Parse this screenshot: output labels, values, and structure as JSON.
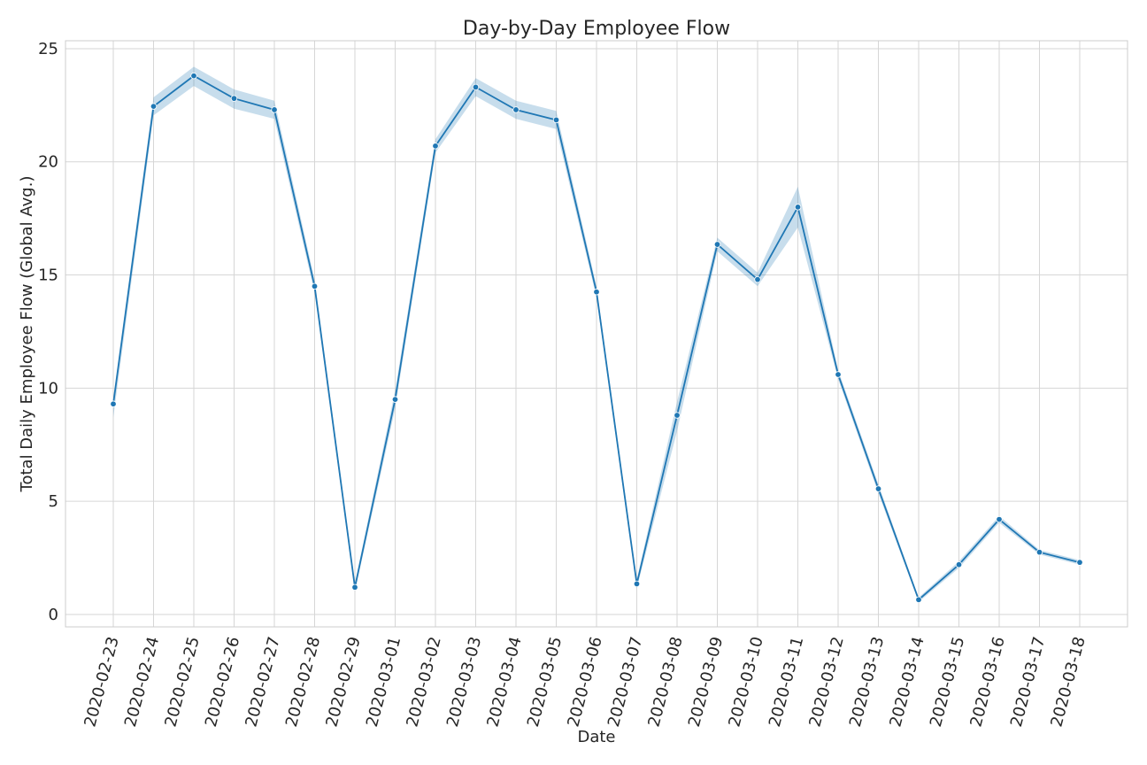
{
  "chart_data": {
    "type": "line",
    "title": "Day-by-Day Employee Flow",
    "xlabel": "Date",
    "ylabel": "Total Daily Employee Flow (Global Avg.)",
    "x": [
      "2020-02-23",
      "2020-02-24",
      "2020-02-25",
      "2020-02-26",
      "2020-02-27",
      "2020-02-28",
      "2020-02-29",
      "2020-03-01",
      "2020-03-02",
      "2020-03-03",
      "2020-03-04",
      "2020-03-05",
      "2020-03-06",
      "2020-03-07",
      "2020-03-08",
      "2020-03-09",
      "2020-03-10",
      "2020-03-11",
      "2020-03-12",
      "2020-03-13",
      "2020-03-14",
      "2020-03-15",
      "2020-03-16",
      "2020-03-17",
      "2020-03-18"
    ],
    "series": [
      {
        "values": [
          9.3,
          22.45,
          23.8,
          22.8,
          22.3,
          14.5,
          1.2,
          9.5,
          20.7,
          23.3,
          22.3,
          21.85,
          14.25,
          1.35,
          8.8,
          16.35,
          14.8,
          18.0,
          10.6,
          5.55,
          0.65,
          2.2,
          4.2,
          2.75,
          2.3
        ],
        "lower": [
          8.7,
          22.05,
          23.35,
          22.35,
          21.9,
          14.2,
          1.0,
          9.1,
          20.4,
          22.9,
          21.9,
          21.45,
          14.0,
          1.15,
          8.1,
          16.05,
          14.5,
          17.1,
          10.4,
          5.35,
          0.55,
          2.05,
          4.05,
          2.65,
          2.2
        ],
        "upper": [
          9.6,
          22.85,
          24.2,
          23.2,
          22.7,
          14.8,
          1.4,
          9.9,
          21.0,
          23.7,
          22.7,
          22.25,
          14.5,
          1.55,
          9.4,
          16.65,
          15.1,
          18.9,
          10.8,
          5.75,
          0.75,
          2.35,
          4.35,
          2.85,
          2.4
        ],
        "color": "#1f77b4"
      }
    ],
    "yticks": [
      0,
      5,
      10,
      15,
      20,
      25
    ],
    "ylim": [
      -0.55,
      25.35
    ],
    "grid": true,
    "xtick_rotation": 75
  }
}
